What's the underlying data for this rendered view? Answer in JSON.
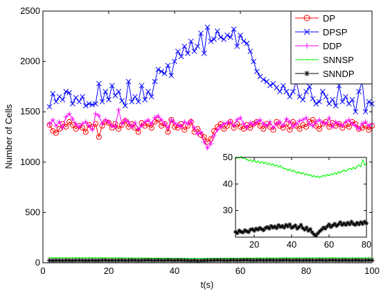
{
  "chart_data": [
    {
      "type": "line",
      "xlabel": "t(s)",
      "ylabel": "Number of Cells",
      "xlim": [
        0,
        100
      ],
      "ylim": [
        0,
        2500
      ],
      "xticks": [
        0,
        20,
        40,
        60,
        80,
        100
      ],
      "yticks": [
        0,
        500,
        1000,
        1500,
        2000,
        2500
      ],
      "grid": false,
      "legend_position": "top-right",
      "x": [
        2,
        3,
        4,
        5,
        6,
        7,
        8,
        9,
        10,
        11,
        12,
        13,
        14,
        15,
        16,
        17,
        18,
        19,
        20,
        21,
        22,
        23,
        24,
        25,
        26,
        27,
        28,
        29,
        30,
        31,
        32,
        33,
        34,
        35,
        36,
        37,
        38,
        39,
        40,
        41,
        42,
        43,
        44,
        45,
        46,
        47,
        48,
        49,
        50,
        51,
        52,
        53,
        54,
        55,
        56,
        57,
        58,
        59,
        60,
        61,
        62,
        63,
        64,
        65,
        66,
        67,
        68,
        69,
        70,
        71,
        72,
        73,
        74,
        75,
        76,
        77,
        78,
        79,
        80,
        81,
        82,
        83,
        84,
        85,
        86,
        87,
        88,
        89,
        90,
        91,
        92,
        93,
        94,
        95,
        96,
        97,
        98,
        99,
        100
      ],
      "series": [
        {
          "name": "DP",
          "color": "#ff0000",
          "marker": "circle",
          "values": [
            1370,
            1310,
            1290,
            1330,
            1380,
            1350,
            1400,
            1370,
            1330,
            1360,
            1340,
            1300,
            1370,
            1350,
            1380,
            1250,
            1360,
            1400,
            1390,
            1340,
            1380,
            1330,
            1370,
            1410,
            1350,
            1380,
            1340,
            1300,
            1390,
            1360,
            1380,
            1340,
            1400,
            1420,
            1360,
            1380,
            1300,
            1420,
            1350,
            1340,
            1380,
            1320,
            1360,
            1400,
            1300,
            1330,
            1270,
            1250,
            1200,
            1230,
            1310,
            1350,
            1380,
            1330,
            1360,
            1400,
            1340,
            1380,
            1350,
            1330,
            1370,
            1340,
            1380,
            1400,
            1360,
            1330,
            1380,
            1350,
            1320,
            1400,
            1360,
            1340,
            1380,
            1320,
            1400,
            1360,
            1330,
            1370,
            1350,
            1400,
            1420,
            1360,
            1330,
            1380,
            1400,
            1350,
            1390,
            1360,
            1380,
            1340,
            1370,
            1350,
            1400,
            1380,
            1330,
            1340,
            1360,
            1320,
            1360
          ]
        },
        {
          "name": "DPSP",
          "color": "#0000ff",
          "marker": "x",
          "values": [
            1550,
            1680,
            1600,
            1650,
            1620,
            1700,
            1690,
            1580,
            1640,
            1600,
            1650,
            1560,
            1580,
            1570,
            1580,
            1780,
            1600,
            1700,
            1620,
            1760,
            1660,
            1700,
            1610,
            1560,
            1800,
            1600,
            1650,
            1600,
            1760,
            1620,
            1700,
            1650,
            1800,
            1920,
            1900,
            1880,
            1960,
            1860,
            2000,
            2100,
            2050,
            2150,
            2080,
            2200,
            2100,
            2150,
            2280,
            2080,
            2340,
            2200,
            2220,
            2300,
            2240,
            2220,
            2260,
            2240,
            2320,
            2150,
            2260,
            2200,
            2180,
            2100,
            2000,
            1900,
            1850,
            1820,
            1800,
            1760,
            1780,
            1740,
            1700,
            1760,
            1700,
            1650,
            1700,
            1800,
            1650,
            1620,
            1700,
            1750,
            1630,
            1580,
            1600,
            1700,
            1650,
            1580,
            1620,
            1560,
            1760,
            1600,
            1650,
            1580,
            1620,
            1500,
            1700,
            1800,
            1500,
            1600,
            1580
          ]
        },
        {
          "name": "DDP",
          "color": "#ff00ff",
          "marker": "plus",
          "values": [
            1380,
            1420,
            1360,
            1400,
            1340,
            1450,
            1480,
            1430,
            1380,
            1350,
            1380,
            1400,
            1360,
            1320,
            1480,
            1460,
            1380,
            1420,
            1400,
            1360,
            1350,
            1520,
            1380,
            1420,
            1400,
            1350,
            1390,
            1330,
            1360,
            1400,
            1420,
            1380,
            1440,
            1460,
            1420,
            1380,
            1340,
            1420,
            1390,
            1370,
            1350,
            1400,
            1380,
            1410,
            1340,
            1280,
            1300,
            1200,
            1140,
            1180,
            1260,
            1320,
            1350,
            1380,
            1390,
            1400,
            1360,
            1420,
            1440,
            1380,
            1340,
            1390,
            1370,
            1400,
            1420,
            1380,
            1360,
            1400,
            1340,
            1380,
            1400,
            1360,
            1430,
            1400,
            1350,
            1380,
            1410,
            1420,
            1440,
            1380,
            1360,
            1400,
            1420,
            1390,
            1380,
            1440,
            1350,
            1400,
            1380,
            1360,
            1400,
            1420,
            1380,
            1360,
            1330,
            1380,
            1400,
            1360,
            1380
          ]
        },
        {
          "name": "SNNSP",
          "color": "#00ff00",
          "marker": "dot",
          "values": [
            49,
            50,
            49,
            50,
            49,
            49,
            48,
            50,
            49,
            50,
            48,
            49,
            50,
            49,
            49,
            48,
            50,
            49,
            48,
            48,
            47,
            49,
            48,
            48,
            47,
            47,
            46,
            47,
            47,
            46,
            46,
            45,
            45,
            46,
            45,
            44,
            45,
            44,
            44,
            43,
            44,
            43,
            43,
            42,
            43,
            43,
            42,
            43,
            44,
            43,
            44,
            44,
            43,
            45,
            44,
            45,
            44,
            45,
            46,
            45,
            46,
            46,
            45,
            47,
            46,
            46,
            47,
            47,
            46,
            47,
            47,
            48,
            47,
            49,
            48,
            47,
            48,
            47,
            49,
            48,
            47,
            49,
            48,
            48,
            47,
            48,
            49,
            48,
            47,
            48,
            48,
            47,
            48,
            47,
            49,
            48,
            48,
            47,
            48
          ]
        },
        {
          "name": "SNNDP",
          "color": "#000000",
          "marker": "star",
          "values": [
            23,
            22,
            24,
            23,
            22,
            24,
            23,
            22,
            24,
            24,
            23,
            22,
            23,
            24,
            22,
            23,
            24,
            25,
            23,
            24,
            23,
            24,
            25,
            23,
            24,
            25,
            24,
            23,
            24,
            25,
            26,
            24,
            23,
            25,
            24,
            23,
            26,
            24,
            23,
            25,
            24,
            23,
            22,
            21,
            22,
            20,
            21,
            22,
            23,
            24,
            25,
            26,
            25,
            24,
            23,
            25,
            26,
            24,
            25,
            26,
            27,
            25,
            24,
            25,
            26,
            24,
            25,
            26,
            25,
            24,
            25,
            26,
            27,
            25,
            24,
            26,
            25,
            24,
            26,
            25,
            25,
            24,
            26,
            25,
            24,
            25,
            26,
            25,
            24,
            25,
            26,
            24,
            25,
            26,
            25,
            24,
            25,
            26,
            25
          ]
        }
      ]
    },
    {
      "type": "line",
      "inset": true,
      "xlim": [
        10,
        80
      ],
      "ylim": [
        20,
        50
      ],
      "xticks": [
        20,
        40,
        60,
        80
      ],
      "yticks": [
        30,
        40,
        50
      ],
      "x": [
        10,
        11,
        12,
        13,
        14,
        15,
        16,
        17,
        18,
        19,
        20,
        21,
        22,
        23,
        24,
        25,
        26,
        27,
        28,
        29,
        30,
        31,
        32,
        33,
        34,
        35,
        36,
        37,
        38,
        39,
        40,
        41,
        42,
        43,
        44,
        45,
        46,
        47,
        48,
        49,
        50,
        51,
        52,
        53,
        54,
        55,
        56,
        57,
        58,
        59,
        60,
        61,
        62,
        63,
        64,
        65,
        66,
        67,
        68,
        69,
        70,
        71,
        72,
        73,
        74,
        75,
        76,
        77,
        78,
        79,
        80
      ],
      "series": [
        {
          "color": "#00ff00",
          "marker": "dot",
          "values": [
            49.5,
            50,
            49.8,
            50.2,
            49.6,
            49.9,
            49.2,
            48.8,
            49.1,
            48.5,
            48.8,
            48.2,
            48.6,
            47.9,
            48.3,
            47.8,
            48.1,
            47.4,
            47.8,
            47.2,
            47.5,
            46.8,
            47.1,
            46.4,
            46.8,
            46.1,
            45.9,
            45.6,
            45.2,
            45.5,
            44.8,
            45.1,
            44.6,
            44.2,
            44.5,
            43.9,
            44.2,
            43.5,
            43.8,
            43.2,
            43.5,
            42.8,
            43.1,
            42.6,
            42.9,
            42.4,
            42.8,
            43.2,
            42.9,
            43.5,
            43.2,
            43.8,
            43.5,
            44.1,
            43.8,
            44.5,
            44.2,
            44.8,
            45.1,
            44.8,
            45.4,
            45.9,
            45.5,
            46.2,
            45.8,
            46.6,
            47.1,
            46.6,
            49,
            47.2,
            47.6
          ]
        },
        {
          "color": "#000000",
          "marker": "star",
          "values": [
            22,
            21.5,
            22.5,
            22,
            21.8,
            22.6,
            22.2,
            21.9,
            22.8,
            23,
            22.4,
            23.2,
            22.8,
            23.5,
            23,
            22.6,
            23.4,
            23.8,
            23.2,
            24.2,
            23.6,
            24,
            23.4,
            24.5,
            23.8,
            24.2,
            23.6,
            24.6,
            24,
            24.8,
            23.5,
            23.9,
            24.4,
            23.2,
            23.8,
            24.6,
            23.4,
            22.8,
            23.6,
            22.4,
            23,
            21.8,
            21,
            20.6,
            21.4,
            22.2,
            22.8,
            23.6,
            23.2,
            24,
            24.8,
            23.8,
            24.4,
            25,
            24.2,
            24.8,
            25.6,
            24.6,
            25.2,
            24.6,
            25.4,
            24.8,
            25.8,
            25,
            24.6,
            25.4,
            24.8,
            25.6,
            25,
            25.8,
            25.2
          ]
        }
      ]
    }
  ]
}
